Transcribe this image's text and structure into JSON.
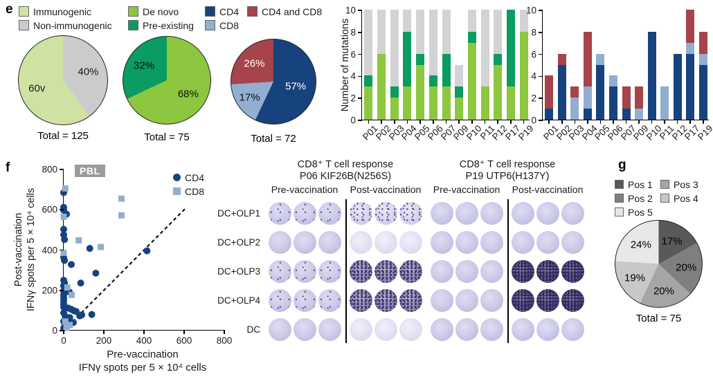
{
  "panels": {
    "e": "e",
    "f": "f",
    "g": "g"
  },
  "legend_e": {
    "group1": [
      {
        "label": "Immunogenic",
        "color": "#cfe2a3"
      },
      {
        "label": "Non-immunogenic",
        "color": "#cbcbcb"
      }
    ],
    "group2": [
      {
        "label": "De novo",
        "color": "#8dc63f"
      },
      {
        "label": "Pre-existing",
        "color": "#0a9c60"
      }
    ],
    "group3": [
      {
        "label": "CD4",
        "color": "#16437e"
      },
      {
        "label": "CD8",
        "color": "#92aed0"
      }
    ],
    "group4": [
      {
        "label": "CD4 and CD8",
        "color": "#a6434b"
      }
    ]
  },
  "chart_data": [
    {
      "type": "pie",
      "name": "immunogenicity",
      "total": "Total = 125",
      "slices": [
        {
          "label": "Non-immunogenic",
          "value": 40,
          "display": "40%",
          "color": "#cbcbcb",
          "text_color": "#1a1a1a",
          "label_r": 30
        },
        {
          "label": "Immunogenic",
          "value": 60,
          "display": "60v",
          "color": "#cfe2a3",
          "text_color": "#1a1a1a",
          "label_r": 31
        }
      ]
    },
    {
      "type": "pie",
      "name": "de-novo-vs-pre-existing",
      "total": "Total = 75",
      "slices": [
        {
          "label": "De novo",
          "value": 68,
          "display": "68%",
          "color": "#8dc63f",
          "text_color": "#111111",
          "label_r": 29
        },
        {
          "label": "Pre-existing",
          "value": 32,
          "display": "32%",
          "color": "#0a9c60",
          "text_color": "#111111",
          "label_r": 31
        }
      ]
    },
    {
      "type": "pie",
      "name": "cd4-cd8",
      "total": "Total = 72",
      "slices": [
        {
          "label": "CD4",
          "value": 57,
          "display": "57%",
          "color": "#16437e",
          "text_color": "#ffffff",
          "label_r": 27
        },
        {
          "label": "CD8",
          "value": 17,
          "display": "17%",
          "color": "#92aed0",
          "text_color": "#111111",
          "label_r": 34
        },
        {
          "label": "CD4 and CD8",
          "value": 26,
          "display": "26%",
          "color": "#a6434b",
          "text_color": "#ffffff",
          "label_r": 31
        }
      ]
    },
    {
      "type": "bar",
      "name": "mutations-immunogenicity",
      "ylabel": "Number of mutations",
      "ylim": [
        0,
        10
      ],
      "yticks": [
        0,
        2,
        4,
        6,
        8,
        10
      ],
      "categories": [
        "P01",
        "P02",
        "P03",
        "P04",
        "P05",
        "P06",
        "P07",
        "P09",
        "P10",
        "P11",
        "P12",
        "P17",
        "P19"
      ],
      "series": [
        {
          "name": "De novo",
          "color": "#8dc63f",
          "values": [
            3,
            6,
            2,
            3,
            5,
            3,
            3,
            2,
            7,
            3,
            5,
            3,
            8
          ]
        },
        {
          "name": "Pre-existing",
          "color": "#0a9c60",
          "values": [
            1,
            0,
            1,
            5,
            1,
            1,
            3,
            1,
            1,
            0,
            1,
            7,
            0
          ]
        },
        {
          "name": "Non-immunogenic",
          "color": "#d3d3d3",
          "values": [
            6,
            4,
            7,
            2,
            4,
            6,
            4,
            2,
            2,
            7,
            4,
            0,
            2
          ]
        }
      ]
    },
    {
      "type": "bar",
      "name": "mutations-tcell-subset",
      "ylabel": "",
      "ylim": [
        0,
        10
      ],
      "yticks": [
        0,
        2,
        4,
        6,
        8,
        10
      ],
      "categories": [
        "P01",
        "P02",
        "P03",
        "P04",
        "P05",
        "P06",
        "P07",
        "P09",
        "P10",
        "P11",
        "P12",
        "P17",
        "P19"
      ],
      "series": [
        {
          "name": "CD4",
          "color": "#16437e",
          "values": [
            1,
            5,
            0,
            1,
            5,
            3,
            1,
            0,
            8,
            0,
            6,
            6,
            5
          ]
        },
        {
          "name": "CD8",
          "color": "#92aed0",
          "values": [
            0,
            0,
            2,
            2,
            1,
            1,
            0,
            1,
            0,
            3,
            0,
            1,
            1
          ]
        },
        {
          "name": "CD4 and CD8",
          "color": "#a6434b",
          "values": [
            3,
            1,
            1,
            5,
            0,
            0,
            2,
            2,
            0,
            0,
            0,
            3,
            2
          ]
        }
      ]
    },
    {
      "type": "scatter",
      "name": "pbl-ifng-spots",
      "badge": "PBL",
      "xlabel1": "Pre-vaccination",
      "xlabel2": "IFNγ spots per 5 × 10⁴ cells",
      "ylabel1": "Post-vaccination",
      "ylabel2": "IFNγ spots per 5 × 10⁴ cells",
      "xlim": [
        0,
        800
      ],
      "ylim": [
        0,
        800
      ],
      "xticks": [
        0,
        200,
        400,
        600,
        800
      ],
      "yticks": [
        0,
        200,
        400,
        600,
        800
      ],
      "identity_line": {
        "from": [
          0,
          0
        ],
        "to": [
          605,
          605
        ],
        "style": "dashed"
      },
      "legend": [
        {
          "label": "CD4",
          "color": "#16437e",
          "marker": "circle"
        },
        {
          "label": "CD8",
          "color": "#92aed0",
          "marker": "square"
        }
      ],
      "series": [
        {
          "name": "CD4",
          "marker": "circle",
          "color": "#16437e",
          "points": [
            [
              0,
              685
            ],
            [
              0,
              612
            ],
            [
              0,
              598
            ],
            [
              14,
              578
            ],
            [
              0,
              503
            ],
            [
              0,
              476
            ],
            [
              4,
              452
            ],
            [
              130,
              408
            ],
            [
              415,
              396
            ],
            [
              0,
              363
            ],
            [
              4,
              348
            ],
            [
              38,
              328
            ],
            [
              160,
              285
            ],
            [
              85,
              236
            ],
            [
              0,
              250
            ],
            [
              4,
              237
            ],
            [
              0,
              222
            ],
            [
              4,
              209
            ],
            [
              0,
              196
            ],
            [
              28,
              192
            ],
            [
              0,
              176
            ],
            [
              0,
              160
            ],
            [
              0,
              147
            ],
            [
              0,
              131
            ],
            [
              0,
              116
            ],
            [
              22,
              112
            ],
            [
              36,
              106
            ],
            [
              50,
              99
            ],
            [
              62,
              95
            ],
            [
              90,
              78
            ],
            [
              140,
              80
            ],
            [
              80,
              73
            ],
            [
              0,
              88
            ],
            [
              8,
              70
            ],
            [
              30,
              65
            ],
            [
              25,
              55
            ],
            [
              48,
              40
            ],
            [
              0,
              46
            ],
            [
              6,
              30
            ],
            [
              18,
              22
            ],
            [
              0,
              12
            ]
          ]
        },
        {
          "name": "CD8",
          "marker": "square",
          "color": "#92aed0",
          "points": [
            [
              8,
              706
            ],
            [
              0,
              565
            ],
            [
              288,
              655
            ],
            [
              288,
              572
            ],
            [
              75,
              448
            ],
            [
              185,
              415
            ],
            [
              0,
              386
            ],
            [
              18,
              214
            ],
            [
              40,
              177
            ],
            [
              8,
              45
            ],
            [
              30,
              28
            ],
            [
              14,
              14
            ]
          ]
        }
      ]
    },
    {
      "type": "elispot_grid",
      "name": "cd8-elispot-wells",
      "groups": [
        {
          "title1": "CD8⁺ T cell response",
          "title2": "P06 KIF26B(N256S)",
          "col1": "Pre-vaccination",
          "col2": "Post-vaccination"
        },
        {
          "title1": "CD8⁺ T cell response",
          "title2": "P19 UTP6(H137Y)",
          "col1": "Pre-vaccination",
          "col2": "Post-vaccination"
        }
      ],
      "rows": [
        "DC+OLP1",
        "DC+OLP2",
        "DC+OLP3",
        "DC+OLP4",
        "DC"
      ],
      "wells_per_condition": 3,
      "patterns": [
        [
          "light-speck",
          "speckle",
          "light",
          "light"
        ],
        [
          "light",
          "faint",
          "light",
          "light"
        ],
        [
          "light-speck",
          "dense",
          "light",
          "dense-dark"
        ],
        [
          "light-speck",
          "dense",
          "light",
          "dense-dark"
        ],
        [
          "light",
          "faint",
          "light",
          "light"
        ]
      ]
    },
    {
      "type": "pie",
      "name": "olp-positions",
      "total": "Total = 75",
      "legend": [
        {
          "label": "Pos 1",
          "color": "#595959"
        },
        {
          "label": "Pos 3",
          "color": "#a5a5a5"
        },
        {
          "label": "Pos 2",
          "color": "#7f7f7f"
        },
        {
          "label": "Pos 4",
          "color": "#c8c8c8"
        },
        {
          "label": "Pos 5",
          "color": "#e8e8e8"
        }
      ],
      "slices": [
        {
          "label": "Pos 1",
          "value": 17,
          "display": "17%",
          "color": "#595959",
          "text_color": "#000000",
          "label_r": 30
        },
        {
          "label": "Pos 2",
          "value": 20,
          "display": "20%",
          "color": "#7f7f7f",
          "text_color": "#000000",
          "label_r": 32
        },
        {
          "label": "Pos 3",
          "value": 20,
          "display": "20%",
          "color": "#a5a5a5",
          "text_color": "#000000",
          "label_r": 32
        },
        {
          "label": "Pos 4",
          "value": 19,
          "display": "19%",
          "color": "#c8c8c8",
          "text_color": "#000000",
          "label_r": 32
        },
        {
          "label": "Pos 5",
          "value": 24,
          "display": "24%",
          "color": "#e8e8e8",
          "text_color": "#000000",
          "label_r": 30
        }
      ]
    }
  ]
}
